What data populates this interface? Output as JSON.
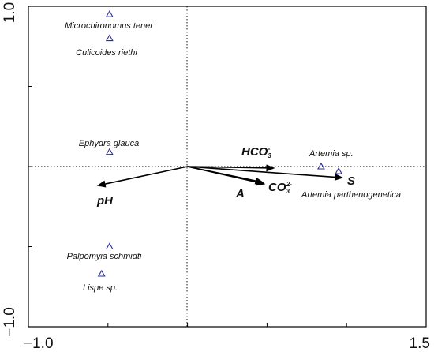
{
  "chart_data": {
    "type": "scatter",
    "subtype": "ordination-biplot",
    "title": "",
    "xlabel": "",
    "ylabel": "",
    "xlim": [
      -1.0,
      1.5
    ],
    "ylim": [
      -1.0,
      1.0
    ],
    "x_ticks": [
      {
        "value": -1.0,
        "label": "−1.0"
      },
      {
        "value": 1.5,
        "label": "1.5"
      }
    ],
    "y_ticks": [
      {
        "value": 1.0,
        "label": "1.0"
      },
      {
        "value": -1.0,
        "label": "−1.0"
      }
    ],
    "reference_lines": {
      "x": 0,
      "y": 0,
      "style": "dotted"
    },
    "grid": false,
    "legend": "none",
    "species": [
      {
        "id": "microchironomus",
        "label": "Microchironomus tener",
        "x": -0.49,
        "y": 0.95
      },
      {
        "id": "culicoides",
        "label": "Culicoides riethi",
        "x": -0.49,
        "y": 0.8
      },
      {
        "id": "ephydra",
        "label": "Ephydra glauca",
        "x": -0.49,
        "y": 0.09
      },
      {
        "id": "artemia-sp",
        "label": "Artemia sp.",
        "x": 0.84,
        "y": 0.0
      },
      {
        "id": "artemia-parth",
        "label": "Artemia parthenogenetica",
        "x": 0.95,
        "y": -0.03
      },
      {
        "id": "palpomyia",
        "label": "Palpomyia schmidti",
        "x": -0.49,
        "y": -0.5
      },
      {
        "id": "lispe",
        "label": "Lispe sp.",
        "x": -0.54,
        "y": -0.67
      }
    ],
    "vectors": [
      {
        "id": "hco3",
        "label": "HCO",
        "sub": "3",
        "sup": "-",
        "x": 0.55,
        "y": -0.01
      },
      {
        "id": "co3",
        "label": "CO",
        "sub": "3",
        "sup": "2-",
        "x": 0.49,
        "y": -0.11
      },
      {
        "id": "a",
        "label": "A",
        "sub": "",
        "sup": "",
        "x": 0.48,
        "y": -0.1
      },
      {
        "id": "s",
        "label": "S",
        "sub": "",
        "sup": "",
        "x": 0.98,
        "y": -0.07
      },
      {
        "id": "ph",
        "label": "pH",
        "sub": "",
        "sup": "",
        "x": -0.57,
        "y": -0.12
      }
    ],
    "colors": {
      "species_marker": "#2b2b9e",
      "vectors": "#000000",
      "frame": "#000000"
    }
  }
}
